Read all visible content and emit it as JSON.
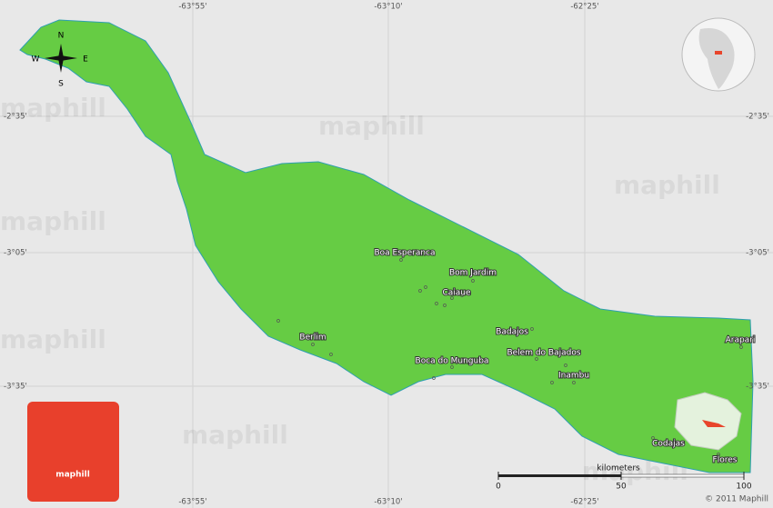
{
  "map": {
    "graticule": {
      "longitudes": [
        "-63°55'",
        "-63°10'",
        "-62°25'"
      ],
      "latitudes": [
        "-2°35'",
        "-3°05'",
        "-3°35'"
      ]
    },
    "compass": {
      "n": "N",
      "s": "S",
      "e": "E",
      "w": "W"
    },
    "places": [
      {
        "label": "Boa Esperanca"
      },
      {
        "label": "Bom Jardim"
      },
      {
        "label": "Caiaue"
      },
      {
        "label": "Berlim"
      },
      {
        "label": "Badajos"
      },
      {
        "label": "Belem do Bajados"
      },
      {
        "label": "Boca do Munguba"
      },
      {
        "label": "Inambu"
      },
      {
        "label": "Arapari"
      },
      {
        "label": "Codajas"
      },
      {
        "label": "Flores"
      }
    ],
    "scale": {
      "unit": "kilometers",
      "ticks": [
        0,
        50,
        100
      ]
    },
    "logo": "maphill",
    "watermark": "maphill",
    "copyright": "© 2011 Maphill"
  }
}
